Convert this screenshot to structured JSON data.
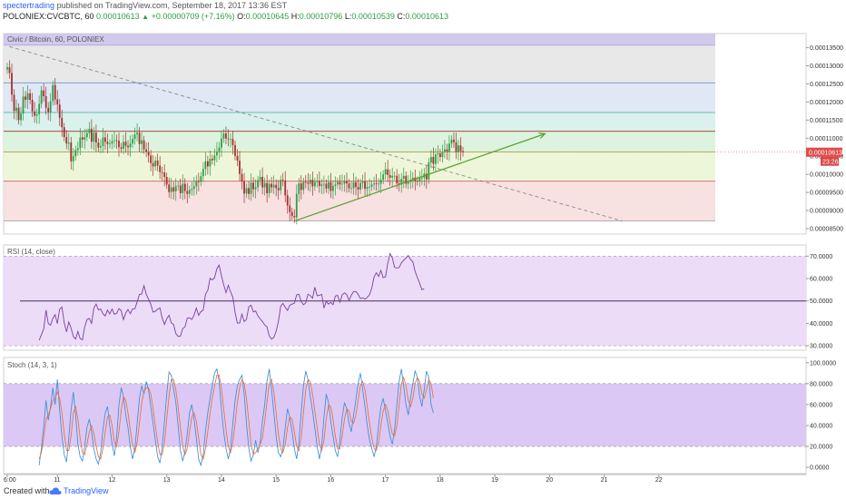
{
  "header": {
    "user": "spectertrading",
    "published_text": "published on TradingView.com, September 18, 2017 13:36 EST",
    "symbol_text": "POLONIEX:CVCBTC, 60",
    "last": "0.00010613",
    "change": "+0.00000709 (+7.16%)",
    "o_label": "O:",
    "o": "0.00010645",
    "h_label": "H:",
    "h": "0.00010796",
    "l_label": "L:",
    "l": "0.00010539",
    "c_label": "C:",
    "c": "0.00010613"
  },
  "footer": {
    "created_with": "Created with",
    "brand": "TradingView"
  },
  "colors": {
    "up": "#2e9e44",
    "down": "#a3302f",
    "rsi": "#7b3f9e",
    "stoch_k": "#3d8fd6",
    "stoch_d": "#e8713c",
    "trend": "#5aa02c"
  },
  "chart_data": [
    {
      "type": "candlestick",
      "title": "Civic / Bitcoin, 60, POLONIEX",
      "x_labels": [
        "6:00",
        "11",
        "12",
        "13",
        "14",
        "15",
        "16",
        "17",
        "18",
        "19",
        "20",
        "21",
        "22"
      ],
      "x_label_bars": [
        0,
        22,
        46,
        70,
        94,
        118,
        142,
        166,
        190,
        214,
        238,
        262,
        286
      ],
      "y_ticks": [
        "0.00013500",
        "0.00013000",
        "0.00012500",
        "0.00012000",
        "0.00011500",
        "0.00011000",
        "0.00010500",
        "0.00010000",
        "0.00009500",
        "0.00009000",
        "0.00008500"
      ],
      "ylim": [
        8.35e-05,
        0.0001389
      ],
      "last_price_label": "0.00010613",
      "countdown_label": "23:26",
      "fib_levels": [
        0.0001357,
        0.0001253,
        0.0001171,
        0.0001119,
        0.0001062,
        9.81e-05,
        8.71e-05
      ],
      "horizontal_line": 0.0001119,
      "downtrend": {
        "from": [
          1,
          0.0001353
        ],
        "to": [
          270,
          8.71e-05
        ]
      },
      "uptrend": {
        "from": [
          126,
          8.71e-05
        ],
        "to": [
          236,
          0.0001112
        ]
      },
      "close": [
        0.0001296,
        0.000128,
        0.000122,
        0.0001175,
        0.0001184,
        0.000115,
        0.0001168,
        0.0001215,
        0.0001206,
        0.0001224,
        0.0001206,
        0.0001174,
        0.0001162,
        0.0001166,
        0.0001195,
        0.0001232,
        0.0001216,
        0.0001184,
        0.0001172,
        0.0001202,
        0.0001247,
        0.0001207,
        0.0001193,
        0.0001156,
        0.000113,
        0.0001103,
        0.0001085,
        0.0001088,
        0.0001036,
        0.000105,
        0.0001067,
        0.0001072,
        0.0001102,
        0.0001096,
        0.0001103,
        0.0001114,
        0.0001126,
        0.000109,
        0.0001115,
        0.0001088,
        0.0001074,
        0.0001078,
        0.0001102,
        0.000109,
        0.0001084,
        0.0001085,
        0.0001092,
        0.0001094,
        0.0001093,
        0.0001075,
        0.0001071,
        0.000109,
        0.0001079,
        0.0001075,
        0.0001085,
        0.0001098,
        0.000111,
        0.0001115,
        0.0001084,
        0.0001094,
        0.0001069,
        0.0001063,
        0.0001052,
        0.0001031,
        0.0001022,
        0.0001038,
        0.0001024,
        0.0001006,
        0.0001005,
        9.93e-05,
        9.72e-05,
        9.51e-05,
        9.64e-05,
        9.53e-05,
        9.67e-05,
        9.69e-05,
        9.48e-05,
        9.74e-05,
        9.54e-05,
        9.46e-05,
        9.57e-05,
        9.6e-05,
        9.67e-05,
        9.82e-05,
        9.79e-05,
        9.95e-05,
        0.0001015,
        0.0001036,
        0.0001022,
        0.0001043,
        0.0001039,
        0.0001052,
        0.0001063,
        0.0001074,
        0.0001099,
        0.0001113,
        0.0001099,
        0.0001097,
        0.0001098,
        0.0001081,
        0.0001051,
        0.0001038,
        0.0001001,
        9.81e-05,
        9.47e-05,
        9.62e-05,
        9.46e-05,
        9.77e-05,
        9.59e-05,
        9.64e-05,
        9.84e-05,
        9.93e-05,
        9.64e-05,
        9.76e-05,
        9.48e-05,
        9.74e-05,
        9.64e-05,
        9.71e-05,
        9.62e-05,
        9.56e-05,
        9.85e-05,
        9.83e-05,
        9.42e-05,
        9.14e-05,
        8.96e-05,
        8.85e-05,
        8.81e-05,
        9.46e-05,
        9.75e-05,
        9.57e-05,
        9.79e-05,
        9.77e-05,
        9.74e-05,
        9.85e-05,
        9.67e-05,
        9.79e-05,
        9.82e-05,
        9.68e-05,
        9.72e-05,
        9.74e-05,
        9.61e-05,
        9.78e-05,
        9.54e-05,
        9.68e-05,
        9.72e-05,
        9.79e-05,
        9.72e-05,
        9.74e-05,
        9.82e-05,
        9.75e-05,
        9.62e-05,
        9.62e-05,
        9.78e-05,
        9.65e-05,
        9.58e-05,
        9.76e-05,
        9.8e-05,
        9.6e-05,
        9.65e-05,
        9.66e-05,
        9.72e-05,
        9.75e-05,
        9.74e-05,
        9.74e-05,
        9.85e-05,
        0.0001,
        0.0001014,
        9.98e-05,
        9.91e-05,
        9.96e-05,
        9.96e-05,
        9.75e-05,
        9.72e-05,
        9.88e-05,
        9.96e-05,
        9.74e-05,
        9.79e-05,
        9.85e-05,
        9.91e-05,
        9.82e-05,
        9.81e-05,
        9.9e-05,
        9.9e-05,
        0.0001002,
        9.86e-05,
        0.0001033,
        0.0001048,
        0.0001029,
        0.0001055,
        0.0001058,
        0.0001048,
        0.0001063,
        0.0001069,
        0.0001063,
        0.0001085,
        0.0001096,
        0.0001089,
        0.0001061,
        0.000108,
        0.0001064,
        0.0001061
      ],
      "ohlc_note": "candles derived from close series with intrabar range",
      "panes": [
        "price",
        "rsi",
        "stoch"
      ]
    },
    {
      "type": "line",
      "title": "RSI (14, close)",
      "y_ticks": [
        "70.0000",
        "60.0000",
        "50.0000",
        "40.0000",
        "30.0000"
      ],
      "ylim": [
        28,
        75
      ],
      "band": [
        30,
        70
      ],
      "midline": 50,
      "series": [
        {
          "values": [
            32.4,
            34.9,
            37.6,
            45.9,
            39.9,
            39.2,
            42.2,
            43.9,
            39.9,
            46.3,
            47.3,
            40.2,
            36.2,
            40.6,
            37.9,
            34.1,
            33.0,
            36.4,
            33.2,
            32.6,
            38.4,
            41.7,
            42.2,
            40.0,
            46.9,
            48.6,
            46.0,
            46.4,
            44.3,
            43.3,
            45.9,
            44.2,
            46.4,
            44.1,
            44.4,
            46.6,
            45.7,
            41.6,
            44.6,
            46.2,
            44.3,
            46.4,
            46.5,
            49.6,
            52.9,
            53.1,
            56.8,
            53.0,
            50.8,
            48.6,
            45.0,
            45.4,
            46.3,
            46.9,
            42.3,
            39.5,
            42.1,
            43.6,
            40.2,
            39.5,
            35.5,
            34.1,
            34.3,
            37.6,
            38.4,
            42.3,
            42.5,
            41.7,
            43.7,
            46.8,
            43.6,
            45.2,
            45.9,
            53.0,
            54.7,
            60.1,
            59.4,
            60.4,
            64.4,
            66.0,
            61.4,
            57.3,
            53.7,
            57.0,
            54.1,
            51.7,
            44.8,
            40.1,
            40.1,
            44.1,
            40.8,
            41.7,
            47.4,
            48.1,
            45.1,
            45.5,
            43.3,
            42.0,
            40.8,
            39.3,
            38.5,
            34.4,
            32.9,
            33.7,
            36.4,
            40.8,
            47.6,
            48.9,
            47.2,
            45.8,
            48.0,
            48.6,
            49.0,
            52.7,
            53.0,
            49.8,
            48.3,
            49.1,
            53.0,
            52.4,
            51.2,
            56.1,
            52.3,
            52.5,
            52.9,
            46.8,
            49.8,
            48.6,
            49.4,
            48.3,
            52.2,
            52.5,
            49.4,
            52.8,
            53.6,
            52.8,
            50.3,
            52.5,
            54.2,
            54.2,
            53.0,
            51.0,
            51.4,
            50.8,
            51.6,
            52.8,
            55.7,
            60.7,
            62.6,
            61.0,
            63.6,
            60.4,
            60.8,
            66.8,
            71.2,
            69.2,
            65.0,
            64.7,
            64.9,
            67.0,
            68.2,
            69.1,
            70.3,
            68.5,
            67.5,
            63.2,
            60.4,
            57.9,
            55.0,
            55.5
          ]
        }
      ]
    },
    {
      "type": "line",
      "title": "Stoch (14, 3, 1)",
      "y_ticks": [
        "100.0000",
        "80.0000",
        "60.0000",
        "40.0000",
        "20.0000",
        "0.0000"
      ],
      "ylim": [
        -6,
        105
      ],
      "band": [
        20,
        80
      ],
      "series": [
        {
          "values": [
            2,
            18,
            40,
            64,
            45,
            58,
            76,
            60,
            84,
            55,
            30,
            12,
            5,
            28,
            55,
            72,
            50,
            22,
            10,
            6,
            20,
            38,
            46,
            34,
            18,
            8,
            3,
            14,
            36,
            52,
            58,
            40,
            22,
            11,
            29,
            59,
            76,
            68,
            50,
            38,
            20,
            8,
            18,
            42,
            66,
            78,
            70,
            82,
            74,
            58,
            42,
            26,
            10,
            4,
            20,
            44,
            70,
            91,
            88,
            75,
            62,
            40,
            16,
            6,
            15,
            32,
            52,
            60,
            46,
            28,
            8,
            2,
            12,
            35,
            52,
            66,
            78,
            90,
            94,
            82,
            56,
            34,
            18,
            8,
            18,
            42,
            64,
            78,
            84,
            88,
            70,
            42,
            18,
            6,
            12,
            26,
            14,
            24,
            44,
            60,
            82,
            94,
            74,
            52,
            30,
            14,
            10,
            18,
            38,
            56,
            48,
            34,
            18,
            8,
            24,
            52,
            78,
            92,
            84,
            68,
            54,
            38,
            20,
            8,
            20,
            48,
            70,
            62,
            44,
            30,
            16,
            10,
            26,
            48,
            62,
            56,
            42,
            34,
            50,
            64,
            80,
            90,
            74,
            58,
            40,
            26,
            18,
            10,
            20,
            40,
            58,
            66,
            54,
            42,
            30,
            22,
            36,
            60,
            82,
            94,
            78,
            60,
            50,
            66,
            80,
            92,
            86,
            68,
            58,
            74,
            92,
            86,
            60,
            52
          ]
        },
        {
          "values": [
            8,
            14,
            28,
            46,
            50,
            56,
            64,
            66,
            72,
            66,
            52,
            32,
            16,
            16,
            30,
            52,
            58,
            46,
            28,
            14,
            12,
            22,
            34,
            40,
            32,
            20,
            10,
            8,
            18,
            34,
            48,
            50,
            40,
            24,
            20,
            34,
            54,
            68,
            64,
            52,
            36,
            22,
            14,
            24,
            42,
            62,
            72,
            76,
            76,
            70,
            56,
            40,
            24,
            12,
            12,
            24,
            46,
            68,
            84,
            84,
            74,
            58,
            38,
            20,
            12,
            18,
            34,
            48,
            52,
            44,
            28,
            12,
            8,
            18,
            34,
            52,
            66,
            78,
            88,
            88,
            76,
            56,
            36,
            20,
            14,
            24,
            42,
            62,
            76,
            84,
            80,
            66,
            44,
            22,
            12,
            14,
            18,
            22,
            28,
            44,
            62,
            80,
            84,
            72,
            52,
            32,
            18,
            14,
            22,
            38,
            48,
            46,
            34,
            20,
            16,
            28,
            52,
            74,
            84,
            82,
            70,
            54,
            38,
            22,
            16,
            26,
            46,
            60,
            58,
            46,
            30,
            18,
            18,
            30,
            46,
            56,
            54,
            44,
            42,
            50,
            64,
            78,
            82,
            74,
            58,
            42,
            28,
            18,
            16,
            24,
            40,
            54,
            60,
            54,
            42,
            32,
            30,
            40,
            60,
            80,
            86,
            78,
            64,
            58,
            66,
            80,
            86,
            82,
            70,
            66,
            74,
            84,
            80,
            66
          ]
        }
      ]
    }
  ]
}
